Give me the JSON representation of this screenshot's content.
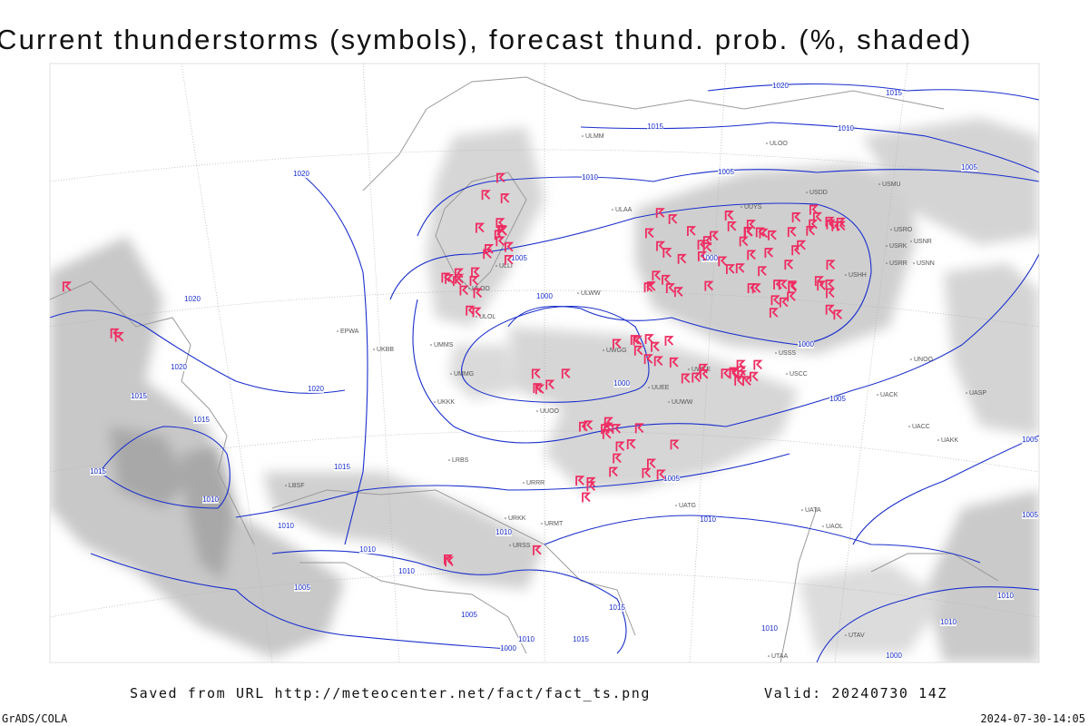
{
  "header": {
    "title": "Current thunderstorms (symbols), forecast thund. prob. (%, shaded)"
  },
  "map": {
    "isobar_labels": [
      1020,
      1015,
      1015,
      1010,
      1005,
      1020,
      1010,
      1005,
      1005,
      1020,
      1000,
      1000,
      1000,
      1020,
      1015,
      1020,
      1000,
      1005,
      1015,
      1015,
      1015,
      1005,
      1005,
      1010,
      1010,
      1010,
      1010,
      1010,
      1010,
      1005,
      1005,
      1010,
      1015,
      1015,
      1000,
      1010,
      1010,
      1010,
      1000,
      1005
    ],
    "stations": [
      "ULMM",
      "ULOO",
      "USDD",
      "USMU",
      "UUYS",
      "ULAA",
      "USRO",
      "USRK",
      "USNR",
      "USRR",
      "USNN",
      "USHH",
      "ULLI",
      "ULOL",
      "ULOO",
      "ULWW",
      "UUWW",
      "UWKE",
      "UWGG",
      "USCC",
      "USSS",
      "UUEE",
      "UUOO",
      "URRR",
      "URKK",
      "URMT",
      "URSS",
      "UATG",
      "UATA",
      "UAOL",
      "UACC",
      "UAKK",
      "UNOO",
      "UACK",
      "UASP",
      "UTAA",
      "UTAV",
      "EPWA",
      "UMMS",
      "UKKK",
      "LRBS",
      "LBSF",
      "UKBB",
      "UMMG"
    ]
  },
  "footer": {
    "source": "Saved from URL http://meteocenter.net/fact/fact_ts.png",
    "valid": "Valid: 20240730 14Z",
    "software": "GrADS/COLA",
    "timestamp": "2024-07-30-14:05"
  }
}
